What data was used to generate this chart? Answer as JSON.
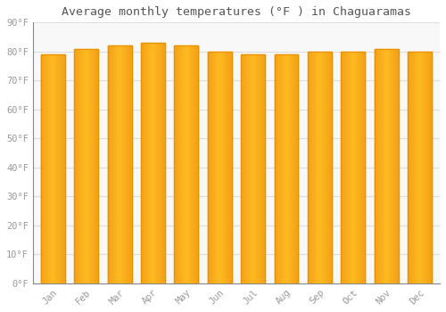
{
  "title": "Average monthly temperatures (°F ) in Chaguaramas",
  "months": [
    "Jan",
    "Feb",
    "Mar",
    "Apr",
    "May",
    "Jun",
    "Jul",
    "Aug",
    "Sep",
    "Oct",
    "Nov",
    "Dec"
  ],
  "values": [
    79,
    81,
    82,
    83,
    82,
    80,
    79,
    79,
    80,
    80,
    81,
    80
  ],
  "bar_color_main": "#FFBB22",
  "bar_color_edge": "#E89000",
  "background_color": "#FFFFFF",
  "plot_bg_color": "#F8F8F8",
  "ylim": [
    0,
    90
  ],
  "yticks": [
    0,
    10,
    20,
    30,
    40,
    50,
    60,
    70,
    80,
    90
  ],
  "ytick_labels": [
    "0°F",
    "10°F",
    "20°F",
    "30°F",
    "40°F",
    "50°F",
    "60°F",
    "70°F",
    "80°F",
    "90°F"
  ],
  "title_fontsize": 9.5,
  "tick_fontsize": 7.5,
  "grid_color": "#DDDDDD",
  "font_color": "#999999",
  "bar_width": 0.72
}
